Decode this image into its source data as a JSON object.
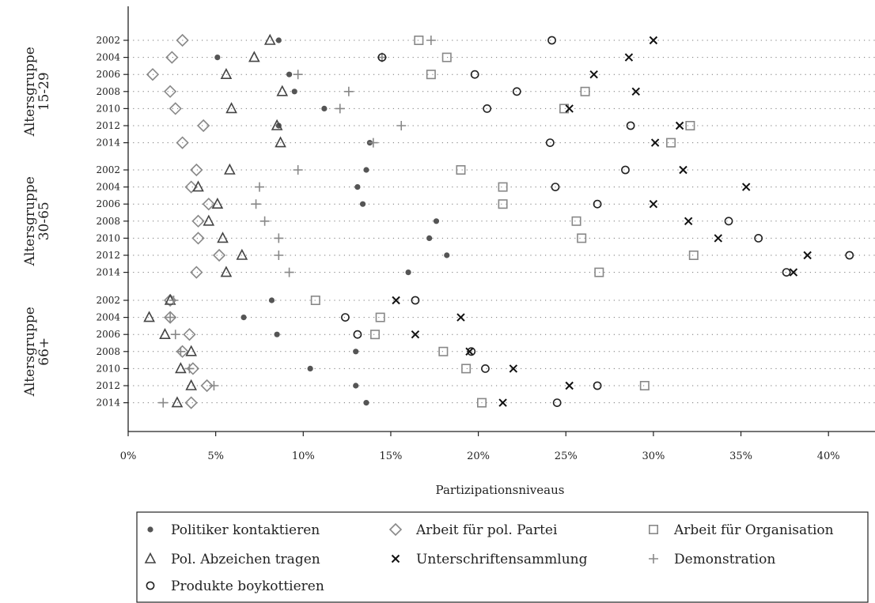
{
  "chart_data": {
    "type": "scatter",
    "title": "",
    "xlabel": "Partizipationsniveaus",
    "ylabel": "",
    "xlim": [
      0,
      42
    ],
    "x_ticks": [
      0,
      5,
      10,
      15,
      20,
      25,
      30,
      35,
      40
    ],
    "x_tick_labels": [
      "0%",
      "5%",
      "10%",
      "15%",
      "20%",
      "25%",
      "30%",
      "35%",
      "40%"
    ],
    "grid": "dotted horizontal lines per year",
    "legend_position": "bottom",
    "years": [
      "2002",
      "2004",
      "2006",
      "2008",
      "2010",
      "2012",
      "2014"
    ],
    "groups": [
      {
        "label": [
          "Altersgruppe",
          "15-29"
        ]
      },
      {
        "label": [
          "Altersgruppe",
          "30-65"
        ]
      },
      {
        "label": [
          "Altersgruppe",
          "66+"
        ]
      }
    ],
    "series": [
      {
        "name": "Politiker kontaktieren",
        "marker": "dot",
        "color": "#555555",
        "values": [
          [
            8.6,
            5.1,
            9.2,
            9.5,
            11.2,
            8.6,
            13.8
          ],
          [
            13.6,
            13.1,
            13.4,
            17.6,
            17.2,
            18.2,
            16.0
          ],
          [
            8.2,
            6.6,
            8.5,
            13.0,
            10.4,
            13.0,
            13.6
          ]
        ]
      },
      {
        "name": "Arbeit für pol. Partei",
        "marker": "diamond",
        "color": "#888888",
        "values": [
          [
            3.1,
            2.5,
            1.4,
            2.4,
            2.7,
            4.3,
            3.1
          ],
          [
            3.9,
            3.6,
            4.6,
            4.0,
            4.0,
            5.2,
            3.9
          ],
          [
            2.4,
            2.4,
            3.5,
            3.1,
            3.7,
            4.5,
            3.6
          ]
        ]
      },
      {
        "name": "Arbeit für Organisation",
        "marker": "square",
        "color": "#888888",
        "values": [
          [
            16.6,
            18.2,
            17.3,
            26.1,
            24.9,
            32.1,
            31.0
          ],
          [
            19.0,
            21.4,
            21.4,
            25.6,
            25.9,
            32.3,
            26.9
          ],
          [
            10.7,
            14.4,
            14.1,
            18.0,
            19.3,
            29.5,
            20.2
          ]
        ]
      },
      {
        "name": "Pol. Abzeichen tragen",
        "marker": "triangle",
        "color": "#444444",
        "values": [
          [
            8.1,
            7.2,
            5.6,
            8.8,
            5.9,
            8.5,
            8.7
          ],
          [
            5.8,
            4.0,
            5.1,
            4.6,
            5.4,
            6.5,
            5.6
          ],
          [
            2.4,
            1.2,
            2.1,
            3.6,
            3.0,
            3.6,
            2.8
          ]
        ]
      },
      {
        "name": "Unterschriftensammlung",
        "marker": "x",
        "color": "#111111",
        "values": [
          [
            30.0,
            28.6,
            26.6,
            29.0,
            25.2,
            31.5,
            30.1
          ],
          [
            31.7,
            35.3,
            30.0,
            32.0,
            33.7,
            38.8,
            38.0
          ],
          [
            15.3,
            19.0,
            16.4,
            19.5,
            22.0,
            25.2,
            21.4
          ]
        ]
      },
      {
        "name": "Demonstration",
        "marker": "plus",
        "color": "#888888",
        "values": [
          [
            17.3,
            14.5,
            9.7,
            12.6,
            12.1,
            15.6,
            14.0
          ],
          [
            9.7,
            7.5,
            7.3,
            7.8,
            8.6,
            8.6,
            9.2
          ],
          [
            2.6,
            2.4,
            2.7,
            3.0,
            3.5,
            4.9,
            2.0
          ]
        ]
      },
      {
        "name": "Produkte boykottieren",
        "marker": "circle",
        "color": "#222222",
        "values": [
          [
            24.2,
            14.5,
            19.8,
            22.2,
            20.5,
            28.7,
            24.1
          ],
          [
            28.4,
            24.4,
            26.8,
            34.3,
            36.0,
            41.2,
            37.6
          ],
          [
            16.4,
            12.4,
            13.1,
            19.6,
            20.4,
            26.8,
            24.5
          ]
        ]
      }
    ]
  }
}
